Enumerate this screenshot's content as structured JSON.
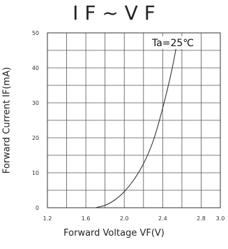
{
  "chart_data": {
    "type": "line",
    "title": "I F ~ V F",
    "xlabel": "Forward Voltage VF(V)",
    "ylabel": "Forward Current IF(mA)",
    "annotation": "Ta=25℃",
    "xlim": [
      1.2,
      3.0
    ],
    "ylim": [
      0,
      50
    ],
    "x_ticks": [
      "1.2",
      "1.4",
      "1.6",
      "1.8",
      "2.0",
      "2.2",
      "2.4",
      "2.6",
      "2.8",
      "3.0"
    ],
    "x_ticks_labeled": [
      "1.2",
      "1.6",
      "2.0",
      "2.4",
      "2.8",
      "3.0"
    ],
    "y_ticks": [
      "0",
      "5",
      "10",
      "15",
      "20",
      "25",
      "30",
      "35",
      "40",
      "45",
      "50"
    ],
    "y_ticks_labeled": [
      "0",
      "10",
      "20",
      "30",
      "40",
      "50"
    ],
    "grid": true,
    "series": [
      {
        "x": [
          1.7,
          1.8,
          1.9,
          2.0,
          2.1,
          2.2,
          2.3,
          2.4,
          2.5,
          2.56
        ],
        "y": [
          0.0,
          0.7,
          2.2,
          4.6,
          8.0,
          12.6,
          19.0,
          28.5,
          40.0,
          49.0
        ]
      }
    ],
    "line_color": "#333333"
  }
}
